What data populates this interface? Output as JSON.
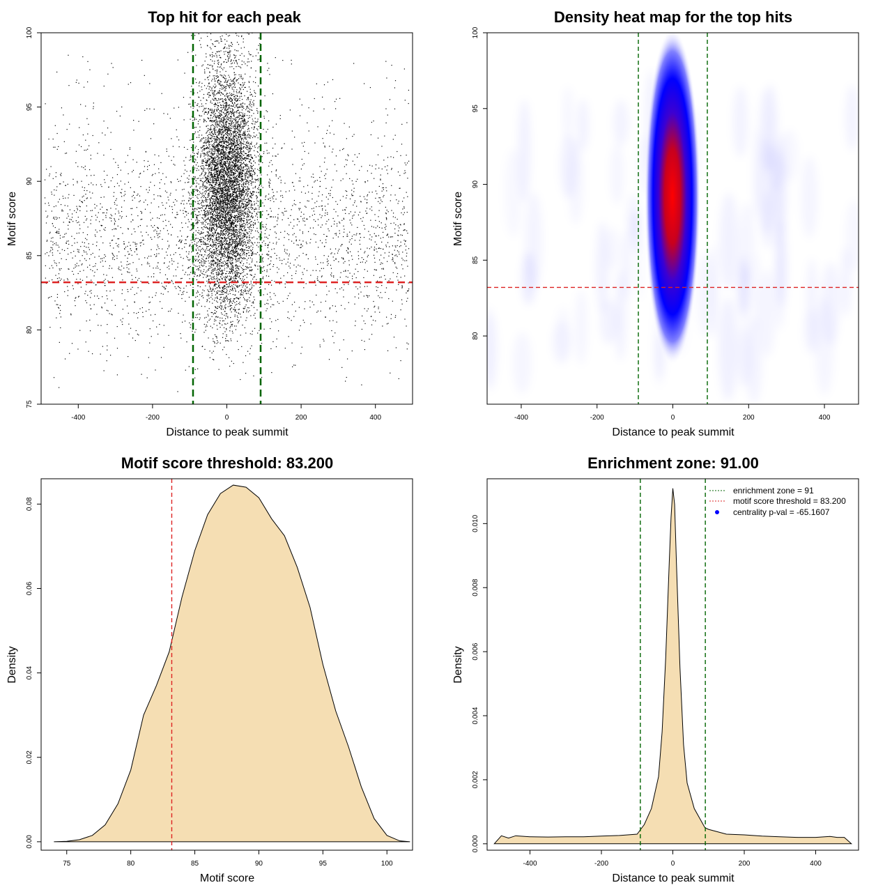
{
  "chart_data": [
    {
      "type": "scatter",
      "title": "Top hit for each peak",
      "xlabel": "Distance to peak summit",
      "ylabel": "Motif score",
      "xlim": [
        -500,
        500
      ],
      "ylim": [
        75,
        100
      ],
      "xticks": [
        -400,
        -200,
        0,
        200,
        400
      ],
      "yticks": [
        75,
        80,
        85,
        90,
        95,
        100
      ],
      "grid": false,
      "point_color": "#000000",
      "points_per_series": {
        "central": 6500,
        "background": 2600,
        "edge": 140
      },
      "central_distribution": {
        "x_mean": 0,
        "x_sd": 40,
        "y_range": [
          77.3,
          100
        ]
      },
      "background_distribution": {
        "x_range": [
          -490,
          490
        ],
        "y_range": [
          75.6,
          98.6
        ]
      },
      "threshold": {
        "y": 83.2,
        "color": "#dd2222"
      },
      "enrichment_zone": {
        "x": [
          -91,
          91
        ],
        "color": "#006400"
      }
    },
    {
      "type": "heatmap",
      "title": "Density heat map for the top hits",
      "xlabel": "Distance to peak summit",
      "ylabel": "Motif score",
      "xlim": [
        -490,
        490
      ],
      "ylim": [
        75.5,
        100
      ],
      "xticks": [
        -400,
        -200,
        0,
        200,
        400
      ],
      "yticks": [
        80,
        85,
        90,
        95,
        100
      ],
      "grid": false,
      "palette": [
        "#ffffff",
        "#0000ff",
        "#ff0000"
      ],
      "hotspot": {
        "x": 0,
        "y": 90
      },
      "threshold": {
        "y": 83.2,
        "color": "#dd2222"
      },
      "enrichment_zone": {
        "x": [
          -91,
          91
        ],
        "color": "#006400"
      }
    },
    {
      "type": "area",
      "title": "Motif score threshold: 83.200",
      "xlabel": "Motif score",
      "ylabel": "Density",
      "xlim": [
        73,
        102
      ],
      "ylim": [
        -0.002,
        0.086
      ],
      "xticks": [
        75,
        80,
        85,
        90,
        95,
        100
      ],
      "yticks": [
        "0.00",
        "0.02",
        "0.04",
        "0.06",
        "0.08"
      ],
      "grid": false,
      "fill": "#f5deb3",
      "x": [
        74,
        75,
        76,
        77,
        78,
        79,
        80,
        81,
        82,
        83,
        84,
        85,
        86,
        87,
        88,
        89,
        90,
        91,
        92,
        93,
        94,
        95,
        96,
        97,
        98,
        99,
        100,
        101,
        101.8
      ],
      "y": [
        0.0,
        0.0001,
        0.0005,
        0.0015,
        0.004,
        0.009,
        0.017,
        0.03,
        0.037,
        0.045,
        0.058,
        0.069,
        0.0775,
        0.0825,
        0.0845,
        0.084,
        0.0815,
        0.0765,
        0.0725,
        0.065,
        0.0555,
        0.042,
        0.031,
        0.0225,
        0.013,
        0.0055,
        0.0015,
        0.0002,
        0.0
      ],
      "threshold": {
        "x": 83.2,
        "color": "#dd2222"
      }
    },
    {
      "type": "area",
      "title": "Enrichment zone: 91.00",
      "xlabel": "Distance to peak summit",
      "ylabel": "Density",
      "xlim": [
        -520,
        520
      ],
      "ylim": [
        -0.0002,
        0.0114
      ],
      "xticks": [
        -400,
        -200,
        0,
        200,
        400
      ],
      "yticks": [
        "0.000",
        "0.002",
        "0.004",
        "0.006",
        "0.008",
        "0.010"
      ],
      "grid": false,
      "fill": "#f5deb3",
      "x": [
        -500,
        -480,
        -460,
        -440,
        -400,
        -350,
        -300,
        -250,
        -200,
        -150,
        -100,
        -90,
        -80,
        -60,
        -40,
        -30,
        -20,
        -10,
        -5,
        0,
        5,
        10,
        20,
        30,
        40,
        60,
        80,
        90,
        100,
        150,
        200,
        250,
        300,
        350,
        400,
        440,
        460,
        480,
        500
      ],
      "y": [
        0.0,
        0.00025,
        0.00018,
        0.00025,
        0.00022,
        0.00021,
        0.00022,
        0.00022,
        0.00024,
        0.00026,
        0.0003,
        0.00045,
        0.0006,
        0.0011,
        0.0021,
        0.0035,
        0.0058,
        0.0088,
        0.0102,
        0.0111,
        0.0106,
        0.0088,
        0.0055,
        0.0031,
        0.0019,
        0.0011,
        0.0007,
        0.0005,
        0.00045,
        0.0003,
        0.00028,
        0.00024,
        0.00022,
        0.0002,
        0.0002,
        0.00023,
        0.0002,
        0.0002,
        0.0
      ],
      "enrichment_zone": {
        "x": [
          -91,
          91
        ],
        "color": "#006400"
      },
      "legend": {
        "position": "top-right",
        "entries": [
          {
            "label": "enrichment zone = 91",
            "color": "#006400",
            "marker": "dotted-line"
          },
          {
            "label": "motif score threshold = 83.200",
            "color": "#dd2222",
            "marker": "dotted-line"
          },
          {
            "label": "centrality p-val = -65.1607",
            "color": "#0000ff",
            "marker": "dot"
          }
        ]
      }
    }
  ]
}
